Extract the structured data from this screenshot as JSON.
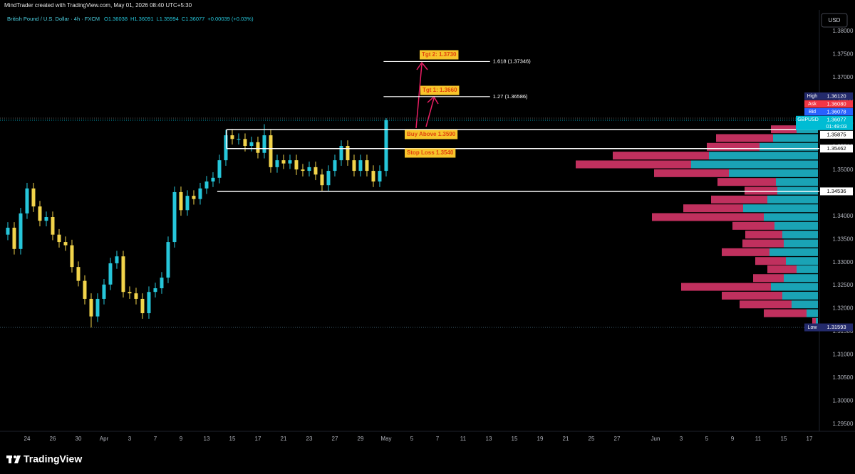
{
  "header": {
    "credit": "MindTrader created with TradingView.com, May 01, 2026 08:40 UTC+5:30",
    "symbol": "British Pound / U.S. Dollar · 4h · FXCM",
    "ohlc": [
      "O1.36038",
      "H1.36091",
      "L1.35994",
      "C1.36077",
      "+0.00039 (+0.03%)"
    ],
    "currency": "USD",
    "brand": "TradingView"
  },
  "chart_data": {
    "type": "candlestick",
    "x": [
      -1.5,
      -1,
      -0.5,
      0,
      0.5,
      1,
      1.5,
      2,
      2.5,
      3,
      3.5,
      4,
      4.5,
      5,
      5.5,
      6,
      6.5,
      7,
      7.5,
      8,
      8.5,
      9,
      9.5,
      10,
      10.5,
      11,
      11.5,
      12,
      12.5,
      13,
      13.5,
      14,
      14.5,
      15,
      15.5,
      16,
      16.5,
      17,
      17.5,
      18,
      18.5,
      19,
      19.5,
      20,
      20.5,
      21,
      21.5,
      22,
      22.5,
      23,
      23.5,
      24,
      24.5,
      25,
      25.5,
      26,
      26.5,
      27,
      27.5,
      28
    ],
    "open": [
      1.336,
      1.3375,
      1.3329,
      1.3406,
      1.346,
      1.3421,
      1.339,
      1.3398,
      1.336,
      1.3344,
      1.3337,
      1.329,
      1.326,
      1.3221,
      1.3183,
      1.3221,
      1.3252,
      1.3298,
      1.3313,
      1.3236,
      1.3233,
      1.3221,
      1.319,
      1.3236,
      1.3244,
      1.3267,
      1.3344,
      1.3452,
      1.3413,
      1.3444,
      1.3437,
      1.346,
      1.3475,
      1.3483,
      1.3521,
      1.3575,
      1.3567,
      1.3567,
      1.3552,
      1.356,
      1.3537,
      1.3575,
      1.3506,
      1.3521,
      1.3514,
      1.3521,
      1.3501,
      1.3498,
      1.3506,
      1.349,
      1.3467,
      1.3498,
      1.3521,
      1.3552,
      1.3521,
      1.3498,
      1.3521,
      1.3498,
      1.3475,
      1.3498
    ],
    "high": [
      1.3387,
      1.3387,
      1.3418,
      1.3472,
      1.3472,
      1.3433,
      1.341,
      1.341,
      1.3372,
      1.3356,
      1.3349,
      1.3302,
      1.3272,
      1.3233,
      1.3233,
      1.3264,
      1.331,
      1.3325,
      1.3325,
      1.3248,
      1.3245,
      1.3233,
      1.3248,
      1.3256,
      1.3279,
      1.3356,
      1.3464,
      1.3464,
      1.3456,
      1.3456,
      1.3472,
      1.3487,
      1.3495,
      1.3533,
      1.3587,
      1.3587,
      1.3579,
      1.3579,
      1.3572,
      1.3572,
      1.3599,
      1.3587,
      1.3533,
      1.3533,
      1.3533,
      1.3533,
      1.3513,
      1.3518,
      1.3518,
      1.3502,
      1.351,
      1.3533,
      1.3564,
      1.3564,
      1.3533,
      1.3533,
      1.3533,
      1.351,
      1.351,
      1.3612
    ],
    "low": [
      1.3348,
      1.3317,
      1.3317,
      1.3394,
      1.3409,
      1.3378,
      1.3378,
      1.3348,
      1.3332,
      1.3325,
      1.3278,
      1.3248,
      1.3209,
      1.3159,
      1.3171,
      1.3209,
      1.324,
      1.3286,
      1.3224,
      1.3221,
      1.3209,
      1.3178,
      1.3178,
      1.3224,
      1.3232,
      1.3255,
      1.3332,
      1.3401,
      1.3401,
      1.3425,
      1.3425,
      1.3448,
      1.3463,
      1.3471,
      1.3509,
      1.3555,
      1.3555,
      1.354,
      1.354,
      1.3525,
      1.3525,
      1.3494,
      1.3494,
      1.3502,
      1.3502,
      1.3489,
      1.3486,
      1.3486,
      1.3478,
      1.3455,
      1.3455,
      1.3486,
      1.3509,
      1.3509,
      1.3486,
      1.3486,
      1.3486,
      1.3463,
      1.3463,
      1.3486
    ],
    "close": [
      1.3375,
      1.3329,
      1.3406,
      1.346,
      1.3421,
      1.339,
      1.3398,
      1.336,
      1.3344,
      1.3337,
      1.329,
      1.326,
      1.3221,
      1.3183,
      1.3221,
      1.3252,
      1.3298,
      1.3313,
      1.3236,
      1.3233,
      1.3221,
      1.319,
      1.3236,
      1.3244,
      1.3267,
      1.3344,
      1.3452,
      1.3413,
      1.3444,
      1.3437,
      1.346,
      1.3475,
      1.3483,
      1.3521,
      1.3575,
      1.3567,
      1.3567,
      1.3552,
      1.356,
      1.3537,
      1.3575,
      1.3506,
      1.3521,
      1.3514,
      1.3521,
      1.3501,
      1.3498,
      1.3506,
      1.349,
      1.3467,
      1.3498,
      1.3521,
      1.3552,
      1.3521,
      1.3498,
      1.3521,
      1.3498,
      1.3475,
      1.3498,
      1.3608
    ],
    "up_color": "#26c6da",
    "down_color": "#f2d44b",
    "xlim": [
      -2.11,
      61.78
    ],
    "xticks": [
      {
        "value": 0,
        "label": "24"
      },
      {
        "value": 2,
        "label": "26"
      },
      {
        "value": 4,
        "label": "30"
      },
      {
        "value": 6,
        "label": "Apr"
      },
      {
        "value": 8,
        "label": "3"
      },
      {
        "value": 10,
        "label": "7"
      },
      {
        "value": 12,
        "label": "9"
      },
      {
        "value": 14,
        "label": "13"
      },
      {
        "value": 16,
        "label": "15"
      },
      {
        "value": 18,
        "label": "17"
      },
      {
        "value": 20,
        "label": "21"
      },
      {
        "value": 22,
        "label": "23"
      },
      {
        "value": 24,
        "label": "27"
      },
      {
        "value": 26,
        "label": "29"
      },
      {
        "value": 28,
        "label": "May"
      },
      {
        "value": 30,
        "label": "5"
      },
      {
        "value": 32,
        "label": "7"
      },
      {
        "value": 34,
        "label": "11"
      },
      {
        "value": 36,
        "label": "13"
      },
      {
        "value": 38,
        "label": "15"
      },
      {
        "value": 40,
        "label": "19"
      },
      {
        "value": 42,
        "label": "21"
      },
      {
        "value": 44,
        "label": "25"
      },
      {
        "value": 46,
        "label": "27"
      },
      {
        "value": 49,
        "label": "Jun"
      },
      {
        "value": 51,
        "label": "3"
      },
      {
        "value": 53,
        "label": "5"
      },
      {
        "value": 55,
        "label": "9"
      },
      {
        "value": 57,
        "label": "11"
      },
      {
        "value": 59,
        "label": "15"
      },
      {
        "value": 61,
        "label": "17"
      }
    ],
    "ylim": [
      1.2936,
      1.384
    ],
    "yticks": [
      {
        "value": 1.38,
        "label": "1.38000"
      },
      {
        "value": 1.375,
        "label": "1.37500"
      },
      {
        "value": 1.37,
        "label": "1.37000"
      },
      {
        "value": 1.365,
        "label": "1.36500"
      },
      {
        "value": 1.36,
        "label": "1.36000"
      },
      {
        "value": 1.355,
        "label": "1.35500"
      },
      {
        "value": 1.35,
        "label": "1.35000"
      },
      {
        "value": 1.345,
        "label": "1.34500"
      },
      {
        "value": 1.34,
        "label": "1.34000"
      },
      {
        "value": 1.335,
        "label": "1.33500"
      },
      {
        "value": 1.33,
        "label": "1.33000"
      },
      {
        "value": 1.325,
        "label": "1.32500"
      },
      {
        "value": 1.32,
        "label": "1.32000"
      },
      {
        "value": 1.315,
        "label": "1.31500"
      },
      {
        "value": 1.31,
        "label": "1.31000"
      },
      {
        "value": 1.305,
        "label": "1.30500"
      },
      {
        "value": 1.3,
        "label": "1.30000"
      },
      {
        "value": 1.295,
        "label": "1.29500"
      }
    ],
    "grid": false,
    "volume_profile": {
      "price": [
        1.3588,
        1.3569,
        1.355,
        1.3531,
        1.3512,
        1.3493,
        1.3474,
        1.3455,
        1.3436,
        1.3417,
        1.3398,
        1.3379,
        1.336,
        1.3341,
        1.3322,
        1.3303,
        1.3285,
        1.3266,
        1.3247,
        1.3228,
        1.3209,
        1.319,
        1.3171
      ],
      "up": [
        30,
        63,
        82,
        153,
        178,
        125,
        59,
        57,
        71,
        105,
        76,
        61,
        50,
        48,
        68,
        45,
        30,
        48,
        66,
        50,
        37,
        16,
        3
      ],
      "down": [
        36,
        80,
        74,
        135,
        162,
        105,
        82,
        46,
        79,
        84,
        157,
        59,
        52,
        58,
        67,
        43,
        41,
        43,
        126,
        85,
        73,
        60,
        5
      ],
      "up_color": "#1aa3b5",
      "down_color": "#c0305e"
    },
    "levels": [
      {
        "value": 1.35875,
        "label": "1.35875",
        "from": 15.56
      },
      {
        "value": 1.35462,
        "label": "1.35462",
        "from": 15.56
      },
      {
        "value": 1.34536,
        "label": "1.34536",
        "from": 14.83
      }
    ],
    "fib": [
      {
        "value": 1.36586,
        "label": "1.27 (1.36586)",
        "from": 27.8,
        "to": 36.1
      },
      {
        "value": 1.37346,
        "label": "1.618 (1.37346)",
        "from": 27.8,
        "to": 36.1
      }
    ],
    "notes": [
      "Buy Above 1.3590",
      "Stop Loss 1.3540",
      "Tgt 1: 1.3660",
      "Tgt 2: 1.3730"
    ],
    "price_tags": [
      {
        "tag": "GBPUSD",
        "value": 1.36077,
        "label": "1.36077",
        "countdown": "01:49:03",
        "color": "#00bcd4"
      },
      {
        "tag": "Bid",
        "value": 1.36078,
        "label": "1.36078",
        "color": "#2962ff"
      },
      {
        "tag": "Ask",
        "value": 1.3608,
        "label": "1.36080",
        "color": "#f23645"
      },
      {
        "tag": "High",
        "value": 1.3612,
        "label": "1.36120",
        "color": "#232a6b"
      }
    ],
    "low_tag": {
      "tag": "Low",
      "value": 1.31593,
      "label": "1.31593",
      "color": "#232a6b"
    }
  }
}
